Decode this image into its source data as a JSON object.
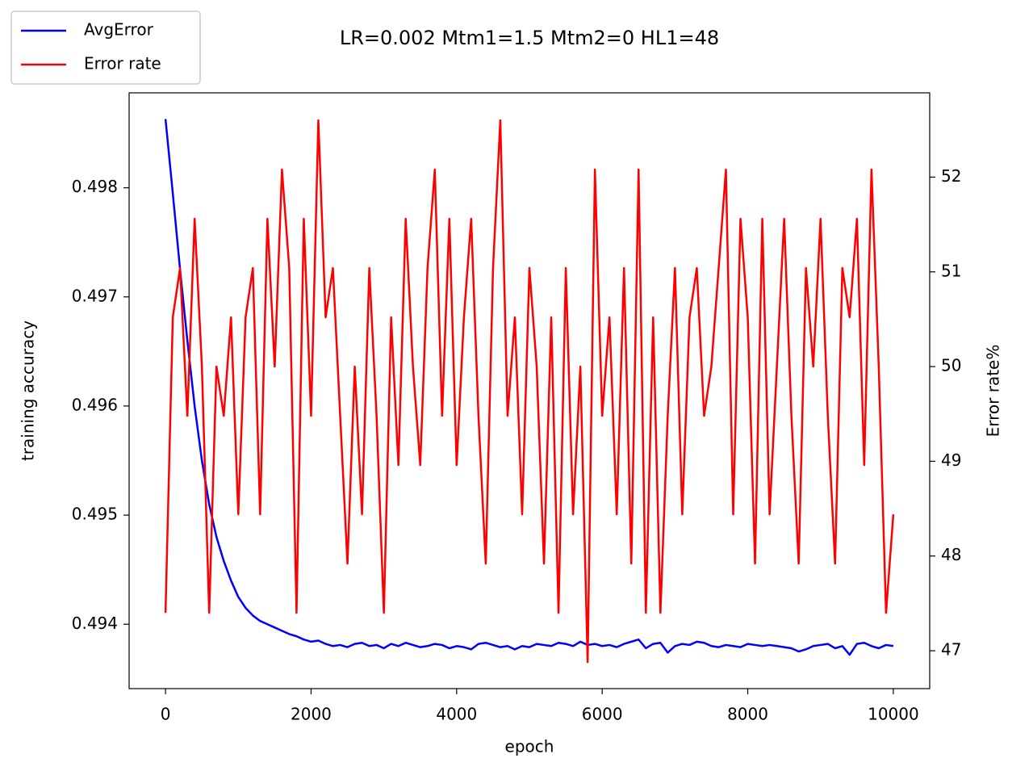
{
  "chart_data": {
    "type": "line",
    "title": "LR=0.002 Mtm1=1.5 Mtm2=0 HL1=48",
    "x_label": "epoch",
    "y_label": "training accuracy",
    "y2_label": "Error rate%",
    "x": [
      0,
      100,
      200,
      300,
      400,
      500,
      600,
      700,
      800,
      900,
      1000,
      1100,
      1200,
      1300,
      1400,
      1500,
      1600,
      1700,
      1800,
      1900,
      2000,
      2100,
      2200,
      2300,
      2400,
      2500,
      2600,
      2700,
      2800,
      2900,
      3000,
      3100,
      3200,
      3300,
      3400,
      3500,
      3600,
      3700,
      3800,
      3900,
      4000,
      4100,
      4200,
      4300,
      4400,
      4500,
      4600,
      4700,
      4800,
      4900,
      5000,
      5100,
      5200,
      5300,
      5400,
      5500,
      5600,
      5700,
      5800,
      5900,
      6000,
      6100,
      6200,
      6300,
      6400,
      6500,
      6600,
      6700,
      6800,
      6900,
      7000,
      7100,
      7200,
      7300,
      7400,
      7500,
      7600,
      7700,
      7800,
      7900,
      8000,
      8100,
      8200,
      8300,
      8400,
      8500,
      8600,
      8700,
      8800,
      8900,
      9000,
      9100,
      9200,
      9300,
      9400,
      9500,
      9600,
      9700,
      9800,
      9900,
      10000
    ],
    "series": [
      {
        "name": "AvgError",
        "color": "#0000ff",
        "axis": "y",
        "values": [
          0.49863,
          0.49795,
          0.49725,
          0.4966,
          0.496,
          0.4955,
          0.4951,
          0.4948,
          0.49458,
          0.4944,
          0.49425,
          0.49415,
          0.49408,
          0.49403,
          0.494,
          0.49397,
          0.49394,
          0.49391,
          0.49389,
          0.49386,
          0.49384,
          0.49385,
          0.49382,
          0.4938,
          0.49381,
          0.49379,
          0.49382,
          0.49383,
          0.4938,
          0.49381,
          0.49378,
          0.49382,
          0.4938,
          0.49383,
          0.49381,
          0.49379,
          0.4938,
          0.49382,
          0.49381,
          0.49378,
          0.4938,
          0.49379,
          0.49377,
          0.49382,
          0.49383,
          0.49381,
          0.49379,
          0.4938,
          0.49377,
          0.4938,
          0.49379,
          0.49382,
          0.49381,
          0.4938,
          0.49383,
          0.49382,
          0.4938,
          0.49384,
          0.49381,
          0.49382,
          0.4938,
          0.49381,
          0.49379,
          0.49382,
          0.49384,
          0.49386,
          0.49378,
          0.49382,
          0.49383,
          0.49374,
          0.4938,
          0.49382,
          0.49381,
          0.49384,
          0.49383,
          0.4938,
          0.49379,
          0.49381,
          0.4938,
          0.49379,
          0.49382,
          0.49381,
          0.4938,
          0.49381,
          0.4938,
          0.49379,
          0.49378,
          0.49375,
          0.49377,
          0.4938,
          0.49381,
          0.49382,
          0.49378,
          0.4938,
          0.49372,
          0.49382,
          0.49383,
          0.4938,
          0.49378,
          0.49381,
          0.4938
        ]
      },
      {
        "name": "Error rate",
        "color": "#ff0000",
        "axis": "y2",
        "values": [
          47.4,
          50.52,
          51.04,
          49.48,
          51.56,
          50.0,
          47.4,
          50.0,
          49.48,
          50.52,
          48.44,
          50.52,
          51.04,
          48.44,
          51.56,
          50.0,
          52.08,
          51.04,
          47.4,
          51.56,
          49.48,
          52.6,
          50.52,
          51.04,
          49.48,
          47.92,
          50.0,
          48.44,
          51.04,
          49.48,
          47.4,
          50.52,
          48.96,
          51.56,
          50.0,
          48.96,
          51.04,
          52.08,
          49.48,
          51.56,
          48.96,
          50.52,
          51.56,
          49.48,
          47.92,
          51.04,
          52.6,
          49.48,
          50.52,
          48.44,
          51.04,
          50.0,
          47.92,
          50.52,
          47.4,
          51.04,
          48.44,
          50.0,
          46.88,
          52.08,
          49.48,
          50.52,
          48.44,
          51.04,
          47.92,
          52.08,
          47.4,
          50.52,
          47.4,
          49.48,
          51.04,
          48.44,
          50.52,
          51.04,
          49.48,
          50.0,
          51.04,
          52.08,
          48.44,
          51.56,
          50.52,
          47.92,
          51.56,
          48.44,
          50.0,
          51.56,
          49.48,
          47.92,
          51.04,
          50.0,
          51.56,
          49.48,
          47.92,
          51.04,
          50.52,
          51.56,
          48.96,
          52.08,
          50.0,
          47.4,
          48.44
        ]
      }
    ],
    "xlim": [
      -500,
      10500
    ],
    "xticks": [
      0,
      2000,
      4000,
      6000,
      8000,
      10000
    ],
    "ylim": [
      0.49341,
      0.49887
    ],
    "yticks": [
      0.494,
      0.495,
      0.496,
      0.497,
      0.498
    ],
    "y2lim": [
      46.6,
      52.89
    ],
    "y2ticks": [
      47,
      48,
      49,
      50,
      51,
      52
    ],
    "legend": "upper left",
    "grid": false
  }
}
